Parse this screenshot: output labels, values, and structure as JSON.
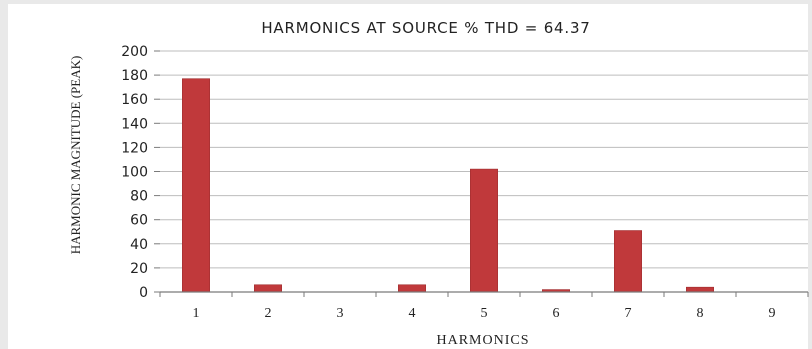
{
  "chart_data": {
    "type": "bar",
    "title": "HARMONICS AT SOURCE % THD = 64.37",
    "xlabel": "HARMONICS",
    "ylabel": "HARMONIC MAGNITUDE (PEAK)",
    "categories": [
      "1",
      "2",
      "3",
      "4",
      "5",
      "6",
      "7",
      "8",
      "9"
    ],
    "values": [
      177,
      6,
      0,
      6,
      102,
      2,
      51,
      4,
      0
    ],
    "ylim": [
      0,
      200
    ],
    "yticks": [
      0,
      20,
      40,
      60,
      80,
      100,
      120,
      140,
      160,
      180,
      200
    ],
    "grid": true,
    "legend": "none",
    "colors": {
      "bar": "#c0393b",
      "bar_edge": "#9e2a2c",
      "plot_area_bg": "#ffffff",
      "frame_bg": "#ffffff",
      "outer_bg": "#e9e9e9",
      "gridline": "#bdbdbd",
      "axis": "#7a7a7a",
      "text": "#222222"
    }
  }
}
